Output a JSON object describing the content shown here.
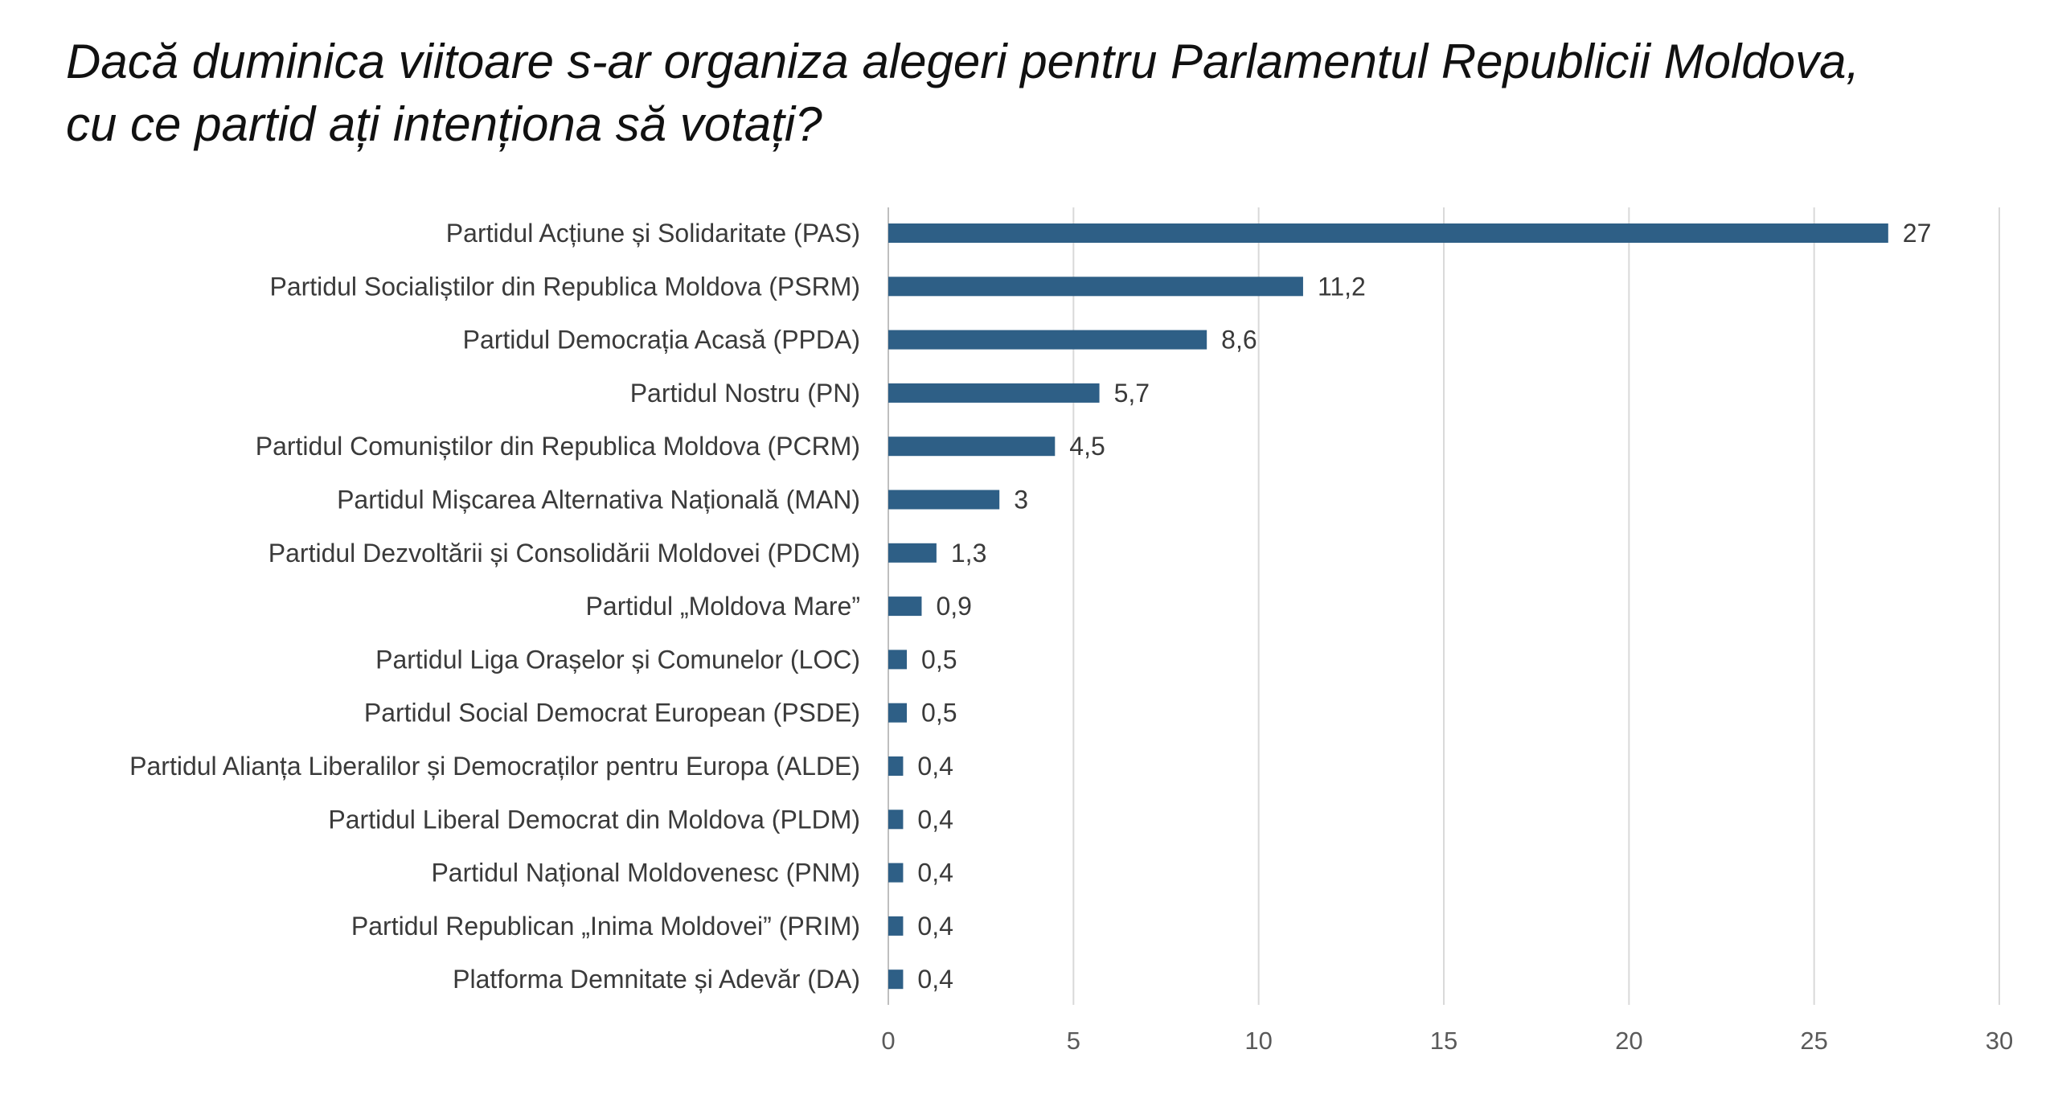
{
  "chart_data": {
    "type": "bar",
    "orientation": "horizontal",
    "title_lines": [
      "Dacă duminica viitoare s-ar organiza alegeri pentru Parlamentul Republicii Moldova,",
      "cu ce partid ați intenționa să votați?"
    ],
    "categories": [
      "Partidul Acțiune și Solidaritate (PAS)",
      "Partidul Socialiștilor din Republica Moldova (PSRM)",
      "Partidul Democrația Acasă (PPDA)",
      "Partidul Nostru (PN)",
      "Partidul Comuniștilor din Republica Moldova (PCRM)",
      "Partidul Mișcarea Alternativa Națională (MAN)",
      "Partidul Dezvoltării și Consolidării Moldovei (PDCM)",
      "Partidul „Moldova Mare”",
      "Partidul Liga Orașelor și Comunelor (LOC)",
      "Partidul Social Democrat European (PSDE)",
      "Partidul Alianța Liberalilor și Democraților pentru Europa (ALDE)",
      "Partidul Liberal Democrat din Moldova (PLDM)",
      "Partidul Național Moldovenesc (PNM)",
      "Partidul Republican „Inima Moldovei” (PRIM)",
      "Platforma Demnitate și Adevăr (DA)"
    ],
    "values": [
      27,
      11.2,
      8.6,
      5.7,
      4.5,
      3,
      1.3,
      0.9,
      0.5,
      0.5,
      0.4,
      0.4,
      0.4,
      0.4,
      0.4
    ],
    "value_labels": [
      "27",
      "11,2",
      "8,6",
      "5,7",
      "4,5",
      "3",
      "1,3",
      "0,9",
      "0,5",
      "0,5",
      "0,4",
      "0,4",
      "0,4",
      "0,4",
      "0,4"
    ],
    "xlim": [
      0,
      30
    ],
    "xticks": [
      0,
      5,
      10,
      15,
      20,
      25,
      30
    ],
    "xtick_labels": [
      "0",
      "5",
      "10",
      "15",
      "20",
      "25",
      "30"
    ],
    "grid": "vertical",
    "legend": "none",
    "bar_color": "#2e5f86"
  }
}
